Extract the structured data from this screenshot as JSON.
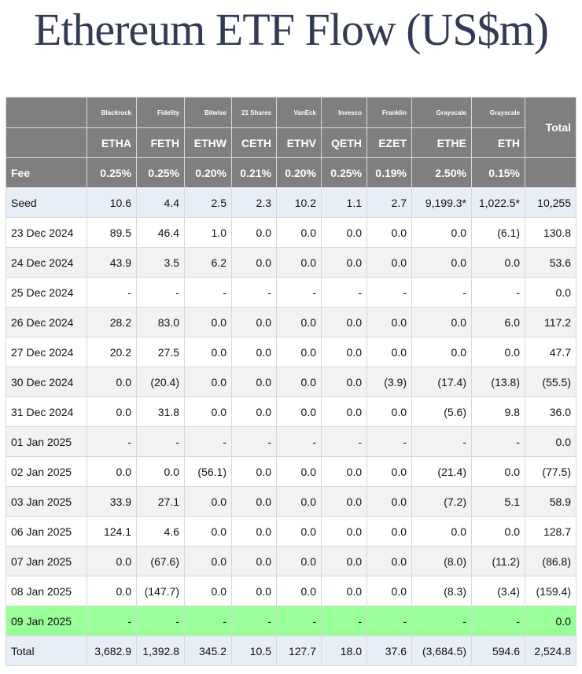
{
  "title": "Ethereum ETF Flow (US$m)",
  "colors": {
    "header_bg": "#7f7f7f",
    "negative": "#dd1111",
    "highlight_row": "#99ff99",
    "seed_total_bg": "#e8eef8",
    "alt_row": "#f2f2f2"
  },
  "header": {
    "issuers": [
      "Blackrock",
      "Fidelity",
      "Bitwise",
      "21 Shares",
      "VanEck",
      "Invesco",
      "Franklin",
      "Grayscale",
      "Grayscale"
    ],
    "total_label": "Total",
    "tickers": [
      "ETHA",
      "FETH",
      "ETHW",
      "CETH",
      "ETHV",
      "QETH",
      "EZET",
      "ETHE",
      "ETH"
    ],
    "fee_label": "Fee",
    "fees": [
      "0.25%",
      "0.25%",
      "0.20%",
      "0.21%",
      "0.20%",
      "0.25%",
      "0.19%",
      "2.50%",
      "0.15%"
    ]
  },
  "rows": [
    {
      "date": "Seed",
      "style": "seed",
      "values": [
        "10.6",
        "4.4",
        "2.5",
        "2.3",
        "10.2",
        "1.1",
        "2.7",
        "9,199.3*",
        "1,022.5*",
        "10,255"
      ]
    },
    {
      "date": "23 Dec 2024",
      "style": "plain",
      "values": [
        "89.5",
        "46.4",
        "1.0",
        "0.0",
        "0.0",
        "0.0",
        "0.0",
        "0.0",
        "(6.1)",
        "130.8"
      ]
    },
    {
      "date": "24 Dec 2024",
      "style": "alt",
      "values": [
        "43.9",
        "3.5",
        "6.2",
        "0.0",
        "0.0",
        "0.0",
        "0.0",
        "0.0",
        "0.0",
        "53.6"
      ]
    },
    {
      "date": "25 Dec 2024",
      "style": "plain",
      "values": [
        "-",
        "-",
        "-",
        "-",
        "-",
        "-",
        "-",
        "-",
        "-",
        "0.0"
      ]
    },
    {
      "date": "26 Dec 2024",
      "style": "alt",
      "values": [
        "28.2",
        "83.0",
        "0.0",
        "0.0",
        "0.0",
        "0.0",
        "0.0",
        "0.0",
        "6.0",
        "117.2"
      ]
    },
    {
      "date": "27 Dec 2024",
      "style": "plain",
      "values": [
        "20.2",
        "27.5",
        "0.0",
        "0.0",
        "0.0",
        "0.0",
        "0.0",
        "0.0",
        "0.0",
        "47.7"
      ]
    },
    {
      "date": "30 Dec 2024",
      "style": "alt",
      "values": [
        "0.0",
        "(20.4)",
        "0.0",
        "0.0",
        "0.0",
        "0.0",
        "(3.9)",
        "(17.4)",
        "(13.8)",
        "(55.5)"
      ]
    },
    {
      "date": "31 Dec 2024",
      "style": "plain",
      "values": [
        "0.0",
        "31.8",
        "0.0",
        "0.0",
        "0.0",
        "0.0",
        "0.0",
        "(5.6)",
        "9.8",
        "36.0"
      ]
    },
    {
      "date": "01 Jan 2025",
      "style": "alt",
      "values": [
        "-",
        "-",
        "-",
        "-",
        "-",
        "-",
        "-",
        "-",
        "-",
        "0.0"
      ]
    },
    {
      "date": "02 Jan 2025",
      "style": "plain",
      "values": [
        "0.0",
        "0.0",
        "(56.1)",
        "0.0",
        "0.0",
        "0.0",
        "0.0",
        "(21.4)",
        "0.0",
        "(77.5)"
      ]
    },
    {
      "date": "03 Jan 2025",
      "style": "alt",
      "values": [
        "33.9",
        "27.1",
        "0.0",
        "0.0",
        "0.0",
        "0.0",
        "0.0",
        "(7.2)",
        "5.1",
        "58.9"
      ]
    },
    {
      "date": "06 Jan 2025",
      "style": "plain",
      "values": [
        "124.1",
        "4.6",
        "0.0",
        "0.0",
        "0.0",
        "0.0",
        "0.0",
        "0.0",
        "0.0",
        "128.7"
      ]
    },
    {
      "date": "07 Jan 2025",
      "style": "alt",
      "values": [
        "0.0",
        "(67.6)",
        "0.0",
        "0.0",
        "0.0",
        "0.0",
        "0.0",
        "(8.0)",
        "(11.2)",
        "(86.8)"
      ]
    },
    {
      "date": "08 Jan 2025",
      "style": "plain",
      "values": [
        "0.0",
        "(147.7)",
        "0.0",
        "0.0",
        "0.0",
        "0.0",
        "0.0",
        "(8.3)",
        "(3.4)",
        "(159.4)"
      ]
    },
    {
      "date": "09 Jan 2025",
      "style": "hl",
      "values": [
        "-",
        "-",
        "-",
        "-",
        "-",
        "-",
        "-",
        "-",
        "-",
        "0.0"
      ]
    },
    {
      "date": "Total",
      "style": "total",
      "values": [
        "3,682.9",
        "1,392.8",
        "345.2",
        "10.5",
        "127.7",
        "18.0",
        "37.6",
        "(3,684.5)",
        "594.6",
        "2,524.8"
      ]
    }
  ]
}
